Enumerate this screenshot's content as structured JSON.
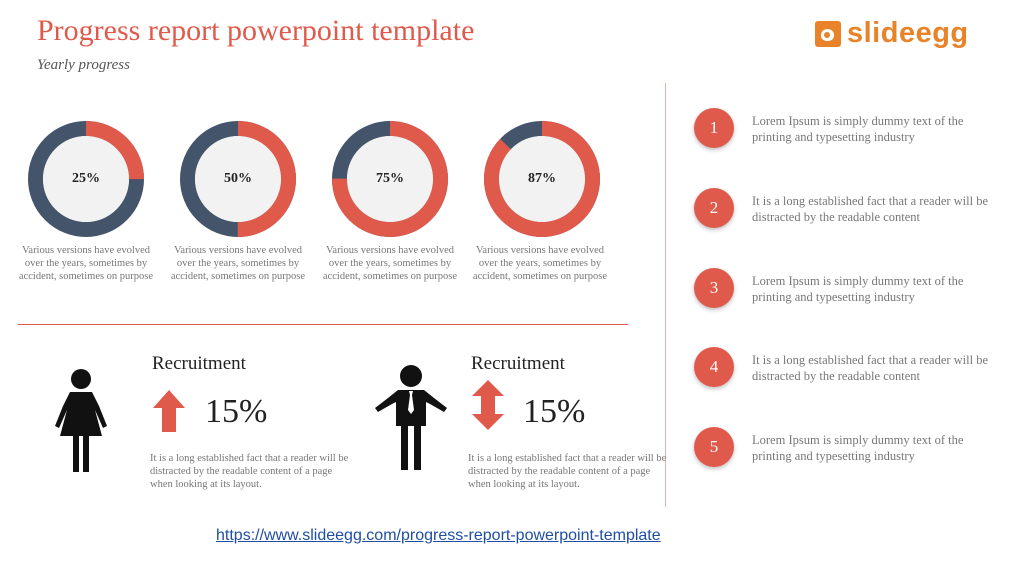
{
  "header": {
    "title": "Progress report powerpoint template",
    "subtitle": "Yearly progress",
    "logo_text_a": "slide",
    "logo_text_b": "egg"
  },
  "colors": {
    "accent": "#e05a4c",
    "dark": "#44546a",
    "ring_center": "#f2f2f2",
    "logo": "#e8832a"
  },
  "donuts": [
    {
      "value": 25,
      "label": "25%",
      "desc": "Various versions have evolved over the years, sometimes by accident, sometimes on purpose"
    },
    {
      "value": 50,
      "label": "50%",
      "desc": "Various versions have evolved over the years, sometimes by accident, sometimes on purpose"
    },
    {
      "value": 75,
      "label": "75%",
      "desc": "Various versions have evolved over the years, sometimes by accident, sometimes on purpose"
    },
    {
      "value": 87,
      "label": "87%",
      "desc": "Various versions have evolved over the years, sometimes by accident, sometimes on purpose"
    }
  ],
  "recruitment": [
    {
      "icon": "woman-icon",
      "arrow": "up-arrow-icon",
      "title": "Recruitment",
      "value": "15%",
      "desc": "It is a long established fact that a reader will be distracted by the readable content of a page when looking at its layout."
    },
    {
      "icon": "man-icon",
      "arrow": "up-down-arrow-icon",
      "title": "Recruitment",
      "value": "15%",
      "desc": "It is a long established fact that a reader will be distracted by the readable content of a page when looking at its layout."
    }
  ],
  "steps": [
    {
      "number": "1",
      "text": "Lorem Ipsum is simply dummy text of the printing and typesetting industry"
    },
    {
      "number": "2",
      "text": "It is a long established fact that a reader will be distracted by the readable content"
    },
    {
      "number": "3",
      "text": "Lorem Ipsum is simply dummy text of the printing and typesetting industry"
    },
    {
      "number": "4",
      "text": "It is a long established fact that a reader will be distracted by the readable content"
    },
    {
      "number": "5",
      "text": "Lorem Ipsum is simply dummy text of the printing and typesetting industry"
    }
  ],
  "footer": {
    "link": "https://www.slideegg.com/progress-report-powerpoint-template"
  }
}
